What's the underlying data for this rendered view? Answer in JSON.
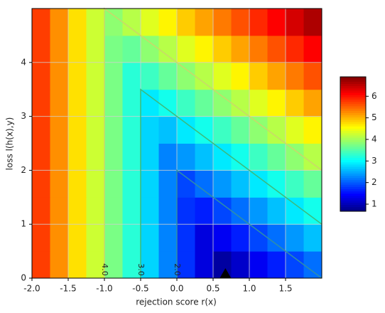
{
  "chart_data": {
    "type": "heatmap",
    "xlabel": "rejection score r(x)",
    "ylabel": "loss l(h(x),y)",
    "colormap": "jet",
    "xlim": [
      -2,
      2
    ],
    "ylim": [
      0,
      5
    ],
    "xticks": [
      {
        "value": -2,
        "label": "-2.0"
      },
      {
        "value": -1.5,
        "label": "-1.5"
      },
      {
        "value": -1,
        "label": "-1.0"
      },
      {
        "value": -0.5,
        "label": "-0.5"
      },
      {
        "value": 0,
        "label": "0.0"
      },
      {
        "value": 0.5,
        "label": "0.5"
      },
      {
        "value": 1,
        "label": "1.0"
      },
      {
        "value": 1.5,
        "label": "1.5"
      }
    ],
    "yticks": [
      0,
      1,
      2,
      3,
      4
    ],
    "grid": true,
    "xbins": [
      -2,
      -1.75,
      -1.5,
      -1.25,
      -1,
      -0.75,
      -0.5,
      -0.25,
      0,
      0.25,
      0.5,
      0.75,
      1,
      1.25,
      1.5,
      1.75,
      2
    ],
    "ybins": [
      0,
      0.5,
      1,
      1.5,
      2,
      2.5,
      3,
      3.5,
      4,
      4.5,
      5
    ],
    "z": [
      [
        5.75,
        5.25,
        4.75,
        4.25,
        3.75,
        3.25,
        2.75,
        2.25,
        1.75,
        1.25,
        0.875,
        1.125,
        1.375,
        1.625,
        1.875,
        2.125
      ],
      [
        5.75,
        5.25,
        4.75,
        4.25,
        3.75,
        3.25,
        2.75,
        2.25,
        1.75,
        1.25,
        1.375,
        1.625,
        1.875,
        2.125,
        2.375,
        2.625
      ],
      [
        5.75,
        5.25,
        4.75,
        4.25,
        3.75,
        3.25,
        2.75,
        2.25,
        1.75,
        1.625,
        1.875,
        2.125,
        2.375,
        2.625,
        2.875,
        3.125
      ],
      [
        5.75,
        5.25,
        4.75,
        4.25,
        3.75,
        3.25,
        2.75,
        2.25,
        1.875,
        2.125,
        2.375,
        2.625,
        2.875,
        3.125,
        3.375,
        3.625
      ],
      [
        5.75,
        5.25,
        4.75,
        4.25,
        3.75,
        3.25,
        2.75,
        2.25,
        2.375,
        2.625,
        2.875,
        3.125,
        3.375,
        3.625,
        3.875,
        4.125
      ],
      [
        5.75,
        5.25,
        4.75,
        4.25,
        3.75,
        3.25,
        2.75,
        2.625,
        2.875,
        3.125,
        3.375,
        3.625,
        3.875,
        4.125,
        4.375,
        4.625
      ],
      [
        5.75,
        5.25,
        4.75,
        4.25,
        3.75,
        3.25,
        2.875,
        3.125,
        3.375,
        3.625,
        3.875,
        4.125,
        4.375,
        4.625,
        4.875,
        5.125
      ],
      [
        5.75,
        5.25,
        4.75,
        4.25,
        3.75,
        3.25,
        3.375,
        3.625,
        3.875,
        4.125,
        4.375,
        4.625,
        4.875,
        5.125,
        5.375,
        5.625
      ],
      [
        5.75,
        5.25,
        4.75,
        4.25,
        3.75,
        3.625,
        3.875,
        4.125,
        4.375,
        4.625,
        4.875,
        5.125,
        5.375,
        5.625,
        5.875,
        6.125
      ],
      [
        5.75,
        5.25,
        4.75,
        4.25,
        3.875,
        4.125,
        4.375,
        4.625,
        4.875,
        5.125,
        5.375,
        5.625,
        5.875,
        6.125,
        6.375,
        6.625
      ]
    ],
    "zlim": [
      0.67,
      6.9
    ],
    "zticks": [
      1,
      2,
      3,
      4,
      5,
      6
    ],
    "contours": [
      {
        "level": {
          "value": 4,
          "label": "4.0"
        },
        "color": "#c9d86a",
        "x": [
          -1,
          -1,
          2
        ],
        "y": [
          0,
          5,
          2
        ]
      },
      {
        "level": {
          "value": 3,
          "label": "3.0"
        },
        "color": "#3cba7c",
        "x": [
          -0.5,
          -0.5,
          2
        ],
        "y": [
          0,
          3.5,
          1
        ]
      },
      {
        "level": {
          "value": 2,
          "label": "2.0"
        },
        "color": "#2f8fa8",
        "x": [
          0,
          0,
          2
        ],
        "y": [
          0,
          2,
          0
        ]
      }
    ],
    "minimum": {
      "x": 0.67,
      "y": 0
    }
  }
}
